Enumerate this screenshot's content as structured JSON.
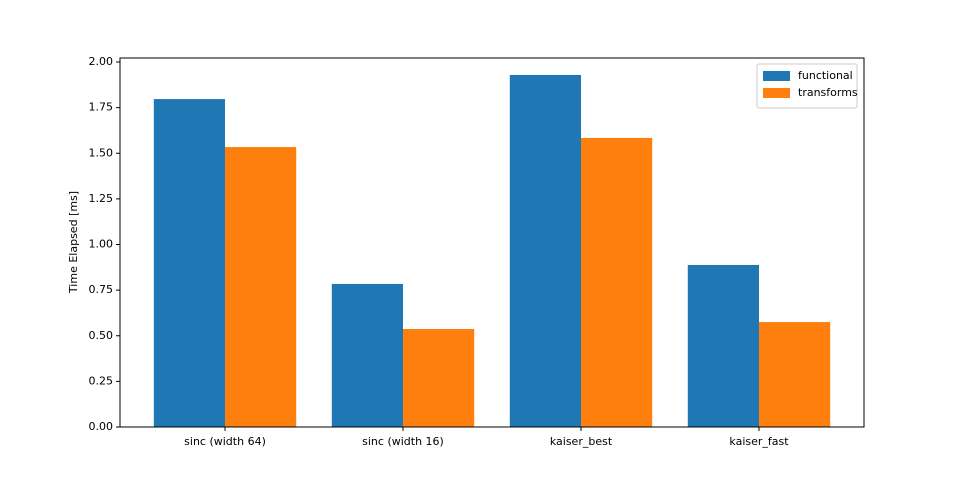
{
  "chart_data": {
    "type": "bar",
    "y_label": "Time Elapsed [ms]",
    "categories": [
      "sinc (width 64)",
      "sinc (width 16)",
      "kaiser_best",
      "kaiser_fast"
    ],
    "series": [
      {
        "name": "functional",
        "color": "#1f77b4",
        "values": [
          1.797,
          0.784,
          1.929,
          0.888
        ]
      },
      {
        "name": "transforms",
        "color": "#ff7f0e",
        "values": [
          1.534,
          0.537,
          1.584,
          0.575
        ]
      }
    ],
    "ylim": [
      0,
      2.022
    ],
    "yticks": [
      {
        "value": 0,
        "label": "0.00"
      },
      {
        "value": 0.25,
        "label": "0.25"
      },
      {
        "value": 0.5,
        "label": "0.50"
      },
      {
        "value": 0.75,
        "label": "0.75"
      },
      {
        "value": 1,
        "label": "1.00"
      },
      {
        "value": 1.25,
        "label": "1.25"
      },
      {
        "value": 1.5,
        "label": "1.50"
      },
      {
        "value": 1.75,
        "label": "1.75"
      },
      {
        "value": 2,
        "label": "2.00"
      }
    ],
    "legend": "upper right"
  }
}
